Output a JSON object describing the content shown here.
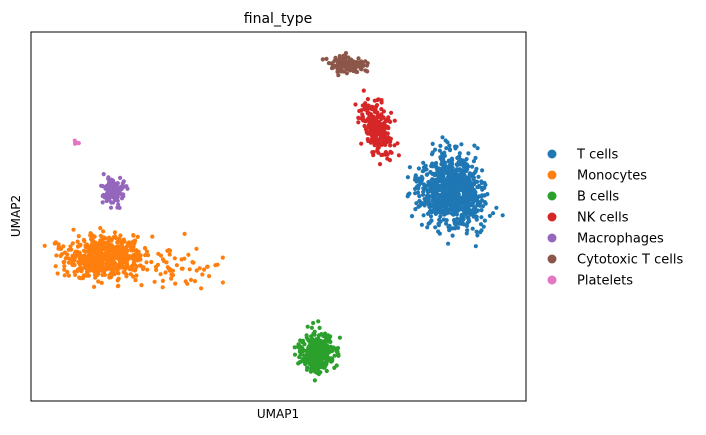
{
  "chart_data": {
    "type": "scatter",
    "title": "final_type",
    "xlabel": "UMAP1",
    "ylabel": "UMAP2",
    "xlim": [
      0,
      100
    ],
    "ylim": [
      0,
      100
    ],
    "grid": false,
    "legend_position": "right-outside",
    "legend": [
      {
        "name": "T cells",
        "color": "#1f77b4"
      },
      {
        "name": "Monocytes",
        "color": "#ff7f0e"
      },
      {
        "name": "B cells",
        "color": "#2ca02c"
      },
      {
        "name": "NK cells",
        "color": "#d62728"
      },
      {
        "name": "Macrophages",
        "color": "#9467bd"
      },
      {
        "name": "Cytotoxic T cells",
        "color": "#8c564b"
      },
      {
        "name": "Platelets",
        "color": "#e377c2"
      }
    ],
    "clusters": [
      {
        "name": "T cells",
        "color": "#1f77b4",
        "center": [
          85,
          57
        ],
        "spread": [
          11,
          16
        ],
        "count": 900
      },
      {
        "name": "Monocytes",
        "color": "#ff7f0e",
        "center": [
          15,
          39
        ],
        "spread": [
          13,
          10
        ],
        "count": 650
      },
      {
        "name": "B cells",
        "color": "#2ca02c",
        "center": [
          58,
          13
        ],
        "spread": [
          6,
          9
        ],
        "count": 350
      },
      {
        "name": "NK cells",
        "color": "#d62728",
        "center": [
          70,
          74
        ],
        "spread": [
          5,
          12
        ],
        "count": 260
      },
      {
        "name": "Macrophages",
        "color": "#9467bd",
        "center": [
          17,
          57
        ],
        "spread": [
          4,
          6
        ],
        "count": 120
      },
      {
        "name": "Cytotoxic T cells",
        "color": "#8c564b",
        "center": [
          64,
          91
        ],
        "spread": [
          6,
          4
        ],
        "count": 130
      },
      {
        "name": "Platelets",
        "color": "#e377c2",
        "center": [
          9,
          70
        ],
        "spread": [
          1,
          1
        ],
        "count": 6
      }
    ]
  }
}
